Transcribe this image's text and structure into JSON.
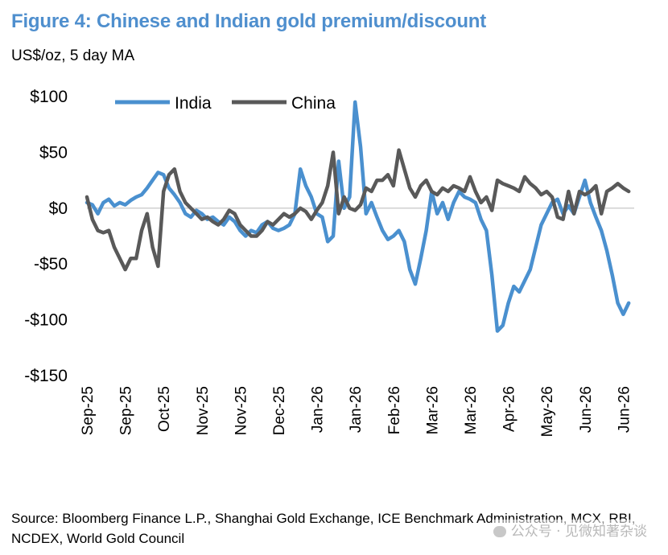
{
  "figure": {
    "title": "Figure 4: Chinese and Indian gold premium/discount",
    "subtitle": "US$/oz, 5 day MA",
    "source": "Source: Bloomberg Finance L.P., Shanghai Gold Exchange, ICE Benchmark Administration, MCX, RBI, NCDEX, World Gold Council",
    "watermark": "公众号 · 见微知著杂谈"
  },
  "chart_data": {
    "type": "line",
    "title": "Figure 4: Chinese and Indian gold premium/discount",
    "ylabel": "US$/oz, 5 day MA",
    "xlabel": "",
    "ylim": [
      -150,
      100
    ],
    "yticks": [
      100,
      50,
      0,
      -50,
      -100,
      -150
    ],
    "ytick_labels": [
      "$100",
      "$50",
      "$0",
      "-$50",
      "-$100",
      "-$150"
    ],
    "x_range": [
      0,
      100
    ],
    "x_tick_positions": [
      0,
      7,
      14,
      21,
      28,
      35,
      42,
      49,
      56,
      63,
      70,
      77,
      84,
      91,
      98
    ],
    "x_tick_labels": [
      "Sep-25",
      "Sep-25",
      "Oct-25",
      "Nov-25",
      "Nov-25",
      "Dec-25",
      "Jan-26",
      "Jan-26",
      "Feb-26",
      "Mar-26",
      "Mar-26",
      "Apr-26",
      "May-26",
      "Jun-26",
      "Jun-26"
    ],
    "grid": false,
    "zero_line": true,
    "legend": {
      "position": "top-left",
      "orientation": "horizontal"
    },
    "series": [
      {
        "name": "India",
        "color": "#4a90cf",
        "x": [
          0,
          1,
          2,
          3,
          4,
          5,
          6,
          7,
          8,
          9,
          10,
          11,
          12,
          13,
          14,
          15,
          16,
          17,
          18,
          19,
          20,
          21,
          22,
          23,
          24,
          25,
          26,
          27,
          28,
          29,
          30,
          31,
          32,
          33,
          34,
          35,
          36,
          37,
          38,
          39,
          40,
          41,
          42,
          43,
          44,
          45,
          46,
          47,
          48,
          49,
          50,
          51,
          52,
          53,
          54,
          55,
          56,
          57,
          58,
          59,
          60,
          61,
          62,
          63,
          64,
          65,
          66,
          67,
          68,
          69,
          70,
          71,
          72,
          73,
          74,
          75,
          76,
          77,
          78,
          79,
          80,
          81,
          82,
          83,
          84,
          85,
          86,
          87,
          88,
          89,
          90,
          91,
          92,
          93,
          94,
          95,
          96,
          97,
          98,
          99
        ],
        "values": [
          5,
          3,
          -5,
          5,
          8,
          2,
          5,
          3,
          7,
          10,
          12,
          18,
          25,
          32,
          30,
          18,
          12,
          5,
          -5,
          -8,
          -2,
          -5,
          -10,
          -8,
          -12,
          -15,
          -8,
          -12,
          -20,
          -25,
          -20,
          -22,
          -15,
          -12,
          -18,
          -20,
          -18,
          -15,
          -5,
          35,
          20,
          10,
          -5,
          -8,
          -30,
          -25,
          42,
          0,
          10,
          95,
          55,
          -5,
          5,
          -8,
          -20,
          -28,
          -25,
          -20,
          -30,
          -55,
          -68,
          -45,
          -20,
          15,
          -5,
          5,
          -10,
          5,
          15,
          10,
          8,
          5,
          -10,
          -20,
          -60,
          -110,
          -105,
          -85,
          -70,
          -75,
          -65,
          -55,
          -35,
          -15,
          -5,
          5,
          8,
          -5,
          2,
          -5,
          10,
          25,
          5,
          -8,
          -20,
          -38,
          -60,
          -85,
          -95,
          -85
        ],
        "values_note": ""
      },
      {
        "name": "China",
        "color": "#595959",
        "x": [
          0,
          1,
          2,
          3,
          4,
          5,
          6,
          7,
          8,
          9,
          10,
          11,
          12,
          13,
          14,
          15,
          16,
          17,
          18,
          19,
          20,
          21,
          22,
          23,
          24,
          25,
          26,
          27,
          28,
          29,
          30,
          31,
          32,
          33,
          34,
          35,
          36,
          37,
          38,
          39,
          40,
          41,
          42,
          43,
          44,
          45,
          46,
          47,
          48,
          49,
          50,
          51,
          52,
          53,
          54,
          55,
          56,
          57,
          58,
          59,
          60,
          61,
          62,
          63,
          64,
          65,
          66,
          67,
          68,
          69,
          70,
          71,
          72,
          73,
          74,
          75,
          76,
          77,
          78,
          79,
          80,
          81,
          82,
          83,
          84,
          85,
          86,
          87,
          88,
          89,
          90,
          91,
          92,
          93,
          94,
          95,
          96,
          97,
          98,
          99
        ],
        "values": [
          10,
          -10,
          -20,
          -22,
          -20,
          -35,
          -45,
          -55,
          -45,
          -45,
          -20,
          -5,
          -35,
          -52,
          15,
          30,
          35,
          15,
          5,
          0,
          -5,
          -10,
          -8,
          -12,
          -15,
          -10,
          -2,
          -5,
          -15,
          -20,
          -25,
          -25,
          -20,
          -12,
          -15,
          -10,
          -5,
          -8,
          -5,
          0,
          -3,
          -10,
          -2,
          5,
          20,
          50,
          -5,
          10,
          0,
          -2,
          3,
          18,
          15,
          25,
          25,
          30,
          20,
          52,
          35,
          18,
          10,
          20,
          25,
          15,
          12,
          18,
          15,
          20,
          18,
          15,
          28,
          15,
          5,
          10,
          -2,
          25,
          22,
          20,
          18,
          15,
          28,
          22,
          18,
          12,
          15,
          10,
          -8,
          -10,
          15,
          -5,
          15,
          12,
          15,
          20,
          -5,
          15,
          18,
          22,
          18,
          15
        ],
        "values_note": ""
      }
    ]
  }
}
